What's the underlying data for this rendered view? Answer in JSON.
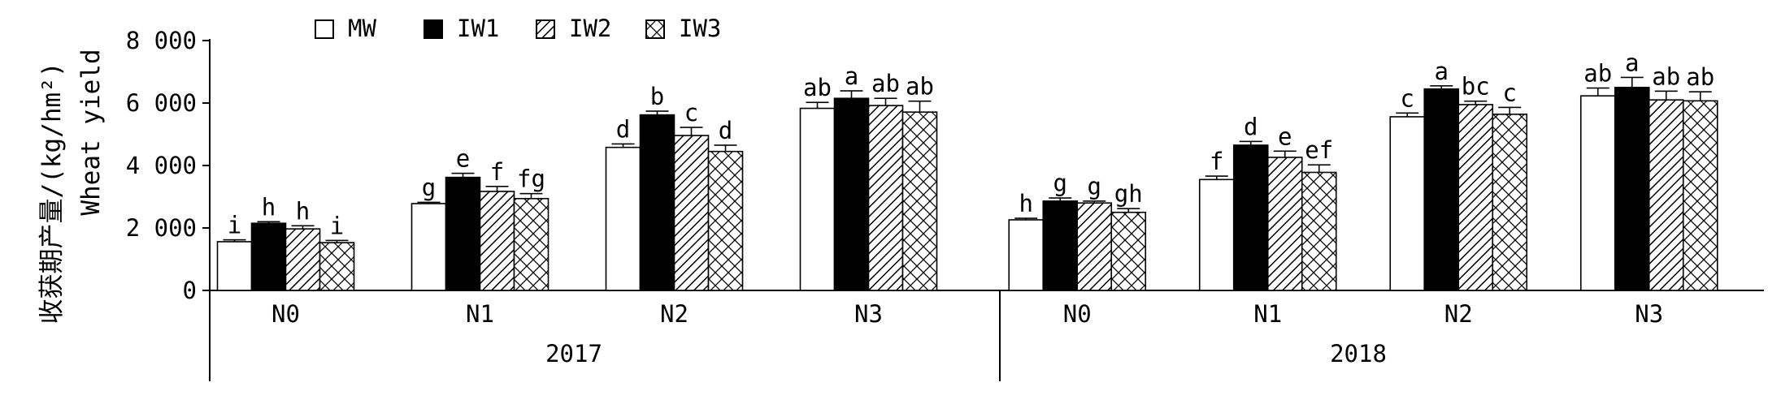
{
  "chart_data": {
    "type": "bar",
    "ylabel_cn": "收获期产量/(kg/hm²)",
    "ylabel_en": "Wheat yield",
    "ylim": [
      0,
      8000
    ],
    "yticks": [
      0,
      2000,
      4000,
      6000,
      8000
    ],
    "ytick_labels": [
      "0",
      "2 000",
      "4 000",
      "6 000",
      "8 000"
    ],
    "legend_position": "top-left",
    "grid": false,
    "colors": {
      "MW": "#ffffff",
      "IW1": "#000000",
      "IW2": "hatch-diagonal",
      "IW3": "hatch-crosshatch",
      "stroke": "#000000"
    },
    "series": [
      {
        "name": "MW"
      },
      {
        "name": "IW1"
      },
      {
        "name": "IW2"
      },
      {
        "name": "IW3"
      }
    ],
    "groups": [
      {
        "year": "2017",
        "categories": [
          {
            "label": "N0",
            "bars": [
              {
                "value": 1560,
                "err": 60,
                "sig": "i"
              },
              {
                "value": 2150,
                "err": 50,
                "sig": "h"
              },
              {
                "value": 1970,
                "err": 100,
                "sig": "h"
              },
              {
                "value": 1530,
                "err": 70,
                "sig": "i"
              }
            ]
          },
          {
            "label": "N1",
            "bars": [
              {
                "value": 2780,
                "err": 40,
                "sig": "g"
              },
              {
                "value": 3620,
                "err": 130,
                "sig": "e"
              },
              {
                "value": 3170,
                "err": 160,
                "sig": "f"
              },
              {
                "value": 2940,
                "err": 160,
                "sig": "fg"
              }
            ]
          },
          {
            "label": "N2",
            "bars": [
              {
                "value": 4580,
                "err": 110,
                "sig": "d"
              },
              {
                "value": 5620,
                "err": 120,
                "sig": "b"
              },
              {
                "value": 4960,
                "err": 260,
                "sig": "c"
              },
              {
                "value": 4450,
                "err": 200,
                "sig": "d"
              }
            ]
          },
          {
            "label": "N3",
            "bars": [
              {
                "value": 5830,
                "err": 190,
                "sig": "ab"
              },
              {
                "value": 6150,
                "err": 240,
                "sig": "a"
              },
              {
                "value": 5920,
                "err": 230,
                "sig": "ab"
              },
              {
                "value": 5710,
                "err": 350,
                "sig": "ab"
              }
            ]
          }
        ]
      },
      {
        "year": "2018",
        "categories": [
          {
            "label": "N0",
            "bars": [
              {
                "value": 2260,
                "err": 50,
                "sig": "h"
              },
              {
                "value": 2860,
                "err": 100,
                "sig": "g"
              },
              {
                "value": 2800,
                "err": 60,
                "sig": "g"
              },
              {
                "value": 2500,
                "err": 120,
                "sig": "gh"
              }
            ]
          },
          {
            "label": "N1",
            "bars": [
              {
                "value": 3550,
                "err": 110,
                "sig": "f"
              },
              {
                "value": 4650,
                "err": 120,
                "sig": "d"
              },
              {
                "value": 4260,
                "err": 200,
                "sig": "e"
              },
              {
                "value": 3780,
                "err": 240,
                "sig": "ef"
              }
            ]
          },
          {
            "label": "N2",
            "bars": [
              {
                "value": 5560,
                "err": 120,
                "sig": "c"
              },
              {
                "value": 6450,
                "err": 100,
                "sig": "a"
              },
              {
                "value": 5950,
                "err": 110,
                "sig": "bc"
              },
              {
                "value": 5640,
                "err": 220,
                "sig": "c"
              }
            ]
          },
          {
            "label": "N3",
            "bars": [
              {
                "value": 6230,
                "err": 250,
                "sig": "ab"
              },
              {
                "value": 6500,
                "err": 320,
                "sig": "a"
              },
              {
                "value": 6100,
                "err": 280,
                "sig": "ab"
              },
              {
                "value": 6070,
                "err": 290,
                "sig": "ab"
              }
            ]
          }
        ]
      }
    ]
  }
}
